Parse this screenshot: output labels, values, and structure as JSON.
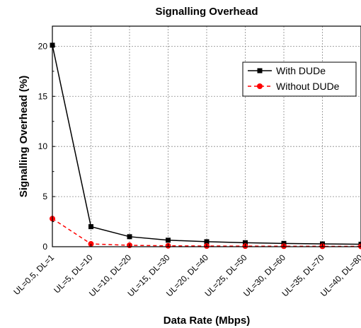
{
  "chart_data": {
    "type": "line",
    "title": "Signalling Overhead",
    "xlabel": "Data Rate (Mbps)",
    "ylabel": "Signalling Overhead (%)",
    "categories": [
      "UL=0.5, DL=1",
      "UL=5, DL=10",
      "UL=10, DL=20",
      "UL=15, DL=30",
      "UL=20, DL=40",
      "UL=25, DL=50",
      "UL=30, DL=60",
      "UL=35, DL=70",
      "UL=40, DL=80"
    ],
    "ylim": [
      0,
      22
    ],
    "yticks": [
      0,
      5,
      10,
      15,
      20
    ],
    "grid": true,
    "legend_position": "top-right",
    "series": [
      {
        "name": "With DUDe",
        "values": [
          20.1,
          2.0,
          1.0,
          0.65,
          0.5,
          0.4,
          0.33,
          0.28,
          0.25
        ],
        "color": "#000000",
        "marker": "square",
        "line": "solid"
      },
      {
        "name": "Without DUDe",
        "values": [
          2.8,
          0.28,
          0.14,
          0.09,
          0.07,
          0.06,
          0.05,
          0.04,
          0.035
        ],
        "color": "#ff0000",
        "marker": "circle",
        "line": "dashed"
      }
    ]
  }
}
